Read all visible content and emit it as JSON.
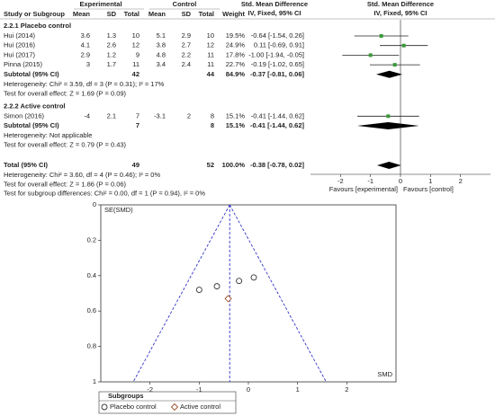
{
  "chart_data": [
    {
      "type": "forest",
      "header": {
        "experimental": "Experimental",
        "control": "Control",
        "effect": "Std. Mean Difference",
        "effect_sub": "IV, Fixed, 95% CI",
        "plot": "Std. Mean Difference",
        "plot_sub": "IV, Fixed, 95% CI"
      },
      "columns": [
        "Study or Subgroup",
        "Mean",
        "SD",
        "Total",
        "Mean",
        "SD",
        "Total",
        "Weight"
      ],
      "subgroups": [
        {
          "title": "2.2.1 Placebo control",
          "studies": [
            {
              "name": "Hui (2014)",
              "exp_mean": 3.6,
              "exp_sd": 1.3,
              "exp_total": 10,
              "ctl_mean": 5.1,
              "ctl_sd": 2.9,
              "ctl_total": 10,
              "weight": "19.5%",
              "ci_label": "-0.64 [-1.54, 0.26]",
              "smd": -0.64,
              "lo": -1.54,
              "hi": 0.26
            },
            {
              "name": "Hui (2016)",
              "exp_mean": 4.1,
              "exp_sd": 2.6,
              "exp_total": 12,
              "ctl_mean": 3.8,
              "ctl_sd": 2.7,
              "ctl_total": 12,
              "weight": "24.9%",
              "ci_label": "0.11 [-0.69, 0.91]",
              "smd": 0.11,
              "lo": -0.69,
              "hi": 0.91
            },
            {
              "name": "Hui (2017)",
              "exp_mean": 2.9,
              "exp_sd": 1.2,
              "exp_total": 9,
              "ctl_mean": 4.8,
              "ctl_sd": 2.2,
              "ctl_total": 11,
              "weight": "17.8%",
              "ci_label": "-1.00 [-1.94, -0.05]",
              "smd": -1.0,
              "lo": -1.94,
              "hi": -0.05
            },
            {
              "name": "Pinna (2015)",
              "exp_mean": 3,
              "exp_sd": 1.7,
              "exp_total": 11,
              "ctl_mean": 3.4,
              "ctl_sd": 2.4,
              "ctl_total": 11,
              "weight": "22.7%",
              "ci_label": "-0.19 [-1.02, 0.65]",
              "smd": -0.19,
              "lo": -1.02,
              "hi": 0.65
            }
          ],
          "subtotal": {
            "name": "Subtotal (95% CI)",
            "exp_total": 42,
            "ctl_total": 44,
            "weight": "84.9%",
            "ci_label": "-0.37 [-0.81, 0.06]",
            "smd": -0.37,
            "lo": -0.81,
            "hi": 0.06
          },
          "heterogeneity": "Heterogeneity: Chi² = 3.59, df = 3 (P = 0.31); I² = 17%",
          "overall": "Test for overall effect: Z = 1.69 (P = 0.09)"
        },
        {
          "title": "2.2.2 Active control",
          "studies": [
            {
              "name": "Simon (2016)",
              "exp_mean": -4,
              "exp_sd": 2.1,
              "exp_total": 7,
              "ctl_mean": -3.1,
              "ctl_sd": 2,
              "ctl_total": 8,
              "weight": "15.1%",
              "ci_label": "-0.41 [-1.44, 0.62]",
              "smd": -0.41,
              "lo": -1.44,
              "hi": 0.62
            }
          ],
          "subtotal": {
            "name": "Subtotal (95% CI)",
            "exp_total": 7,
            "ctl_total": 8,
            "weight": "15.1%",
            "ci_label": "-0.41 [-1.44, 0.62]",
            "smd": -0.41,
            "lo": -1.44,
            "hi": 0.62
          },
          "heterogeneity": "Heterogeneity: Not applicable",
          "overall": "Test for overall effect: Z = 0.79 (P = 0.43)"
        }
      ],
      "total": {
        "name": "Total (95% CI)",
        "exp_total": 49,
        "ctl_total": 52,
        "weight": "100.0%",
        "ci_label": "-0.38 [-0.78, 0.02]",
        "smd": -0.38,
        "lo": -0.78,
        "hi": 0.02
      },
      "notes": [
        "Heterogeneity: Chi² = 3.60, df = 4 (P = 0.46); I² = 0%",
        "Test for overall effect: Z = 1.86 (P = 0.06)",
        "Test for subgroup differences: Chi² = 0.00, df = 1 (P = 0.94), I² = 0%"
      ],
      "xlim": [
        -3,
        3
      ],
      "xticks": [
        -2,
        -1,
        0,
        1,
        2
      ],
      "favours_left": "Favours [experimental]",
      "favours_right": "Favours [control]",
      "point_color": "#3a9a3a"
    },
    {
      "type": "scatter",
      "ylabel": "SE(SMD)",
      "xlabel": "SMD",
      "xlim": [
        -3,
        3
      ],
      "xticks": [
        -2,
        -1,
        0,
        1,
        2
      ],
      "ylim": [
        0,
        1
      ],
      "yticks": [
        0,
        0.2,
        0.4,
        0.6,
        0.8,
        1
      ],
      "y_inverted": true,
      "summary": -0.38,
      "funnel_limits": [
        -2.34,
        1.58
      ],
      "line_color": "#3434c8",
      "legend_title": "Subgroups",
      "series": [
        {
          "name": "Placebo control",
          "marker": "circle",
          "color": "#333333",
          "x": [
            -0.64,
            0.11,
            -1.0,
            -0.19
          ],
          "values": [
            0.46,
            0.41,
            0.48,
            0.43
          ]
        },
        {
          "name": "Active control",
          "marker": "diamond",
          "color": "#a0522d",
          "x": [
            -0.41
          ],
          "values": [
            0.53
          ]
        }
      ]
    }
  ]
}
